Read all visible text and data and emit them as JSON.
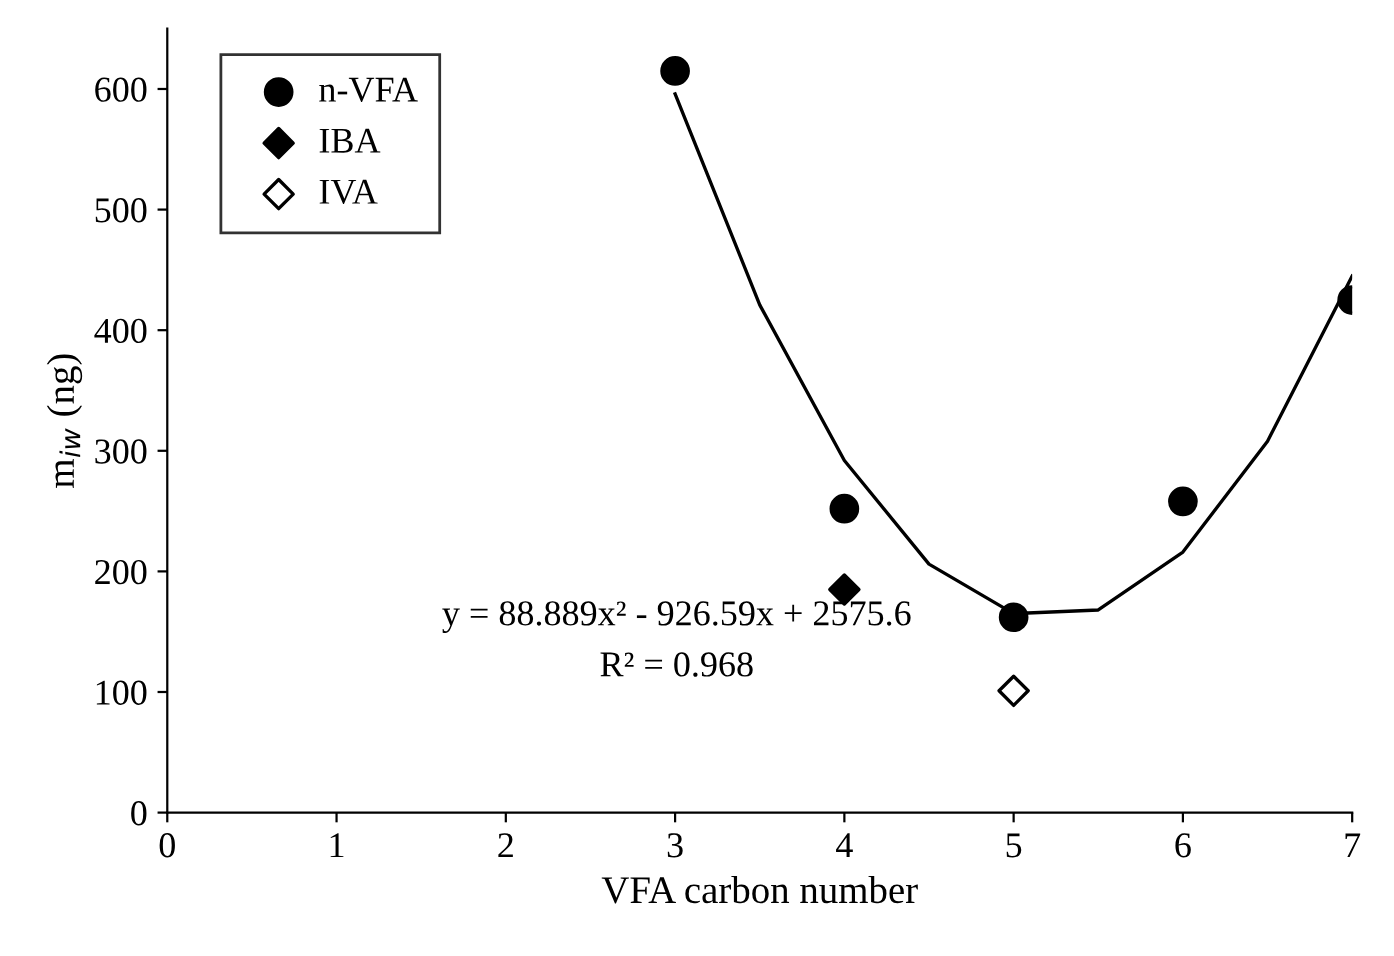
{
  "chart_data": {
    "type": "scatter",
    "xlabel": "VFA carbon number",
    "ylabel": "m$_{iw}$ (ng)",
    "xlim": [
      0,
      7
    ],
    "xticks": [
      0,
      1,
      2,
      3,
      4,
      5,
      6,
      7
    ],
    "ylim": [
      0,
      650
    ],
    "yticks": [
      0,
      100,
      200,
      300,
      400,
      500,
      600
    ],
    "grid": false,
    "legend": "top left",
    "series": [
      {
        "name": "n-VFA",
        "color": "#000000",
        "marker": "circle",
        "x": [
          3,
          4,
          5,
          6,
          7
        ],
        "values": [
          615,
          252,
          162,
          258,
          425
        ]
      },
      {
        "name": "IBA",
        "color": "#000000",
        "marker": "diamond",
        "x": [
          4
        ],
        "values": [
          185
        ]
      },
      {
        "name": "IVA",
        "color": "#ffffff",
        "marker": "diamond",
        "x": [
          5
        ],
        "values": [
          101
        ]
      },
      {
        "type": "line",
        "color": "#000000",
        "marker": "none",
        "x": [
          3,
          3.5,
          4,
          4.5,
          5,
          5.5,
          6,
          6.5,
          7
        ],
        "values": [
          596,
          421,
          292,
          206,
          165,
          168,
          216,
          308,
          445
        ]
      }
    ],
    "annotations": [
      "y = 88.889x² - 926.59x + 2575.6",
      "R² = 0.968"
    ]
  }
}
